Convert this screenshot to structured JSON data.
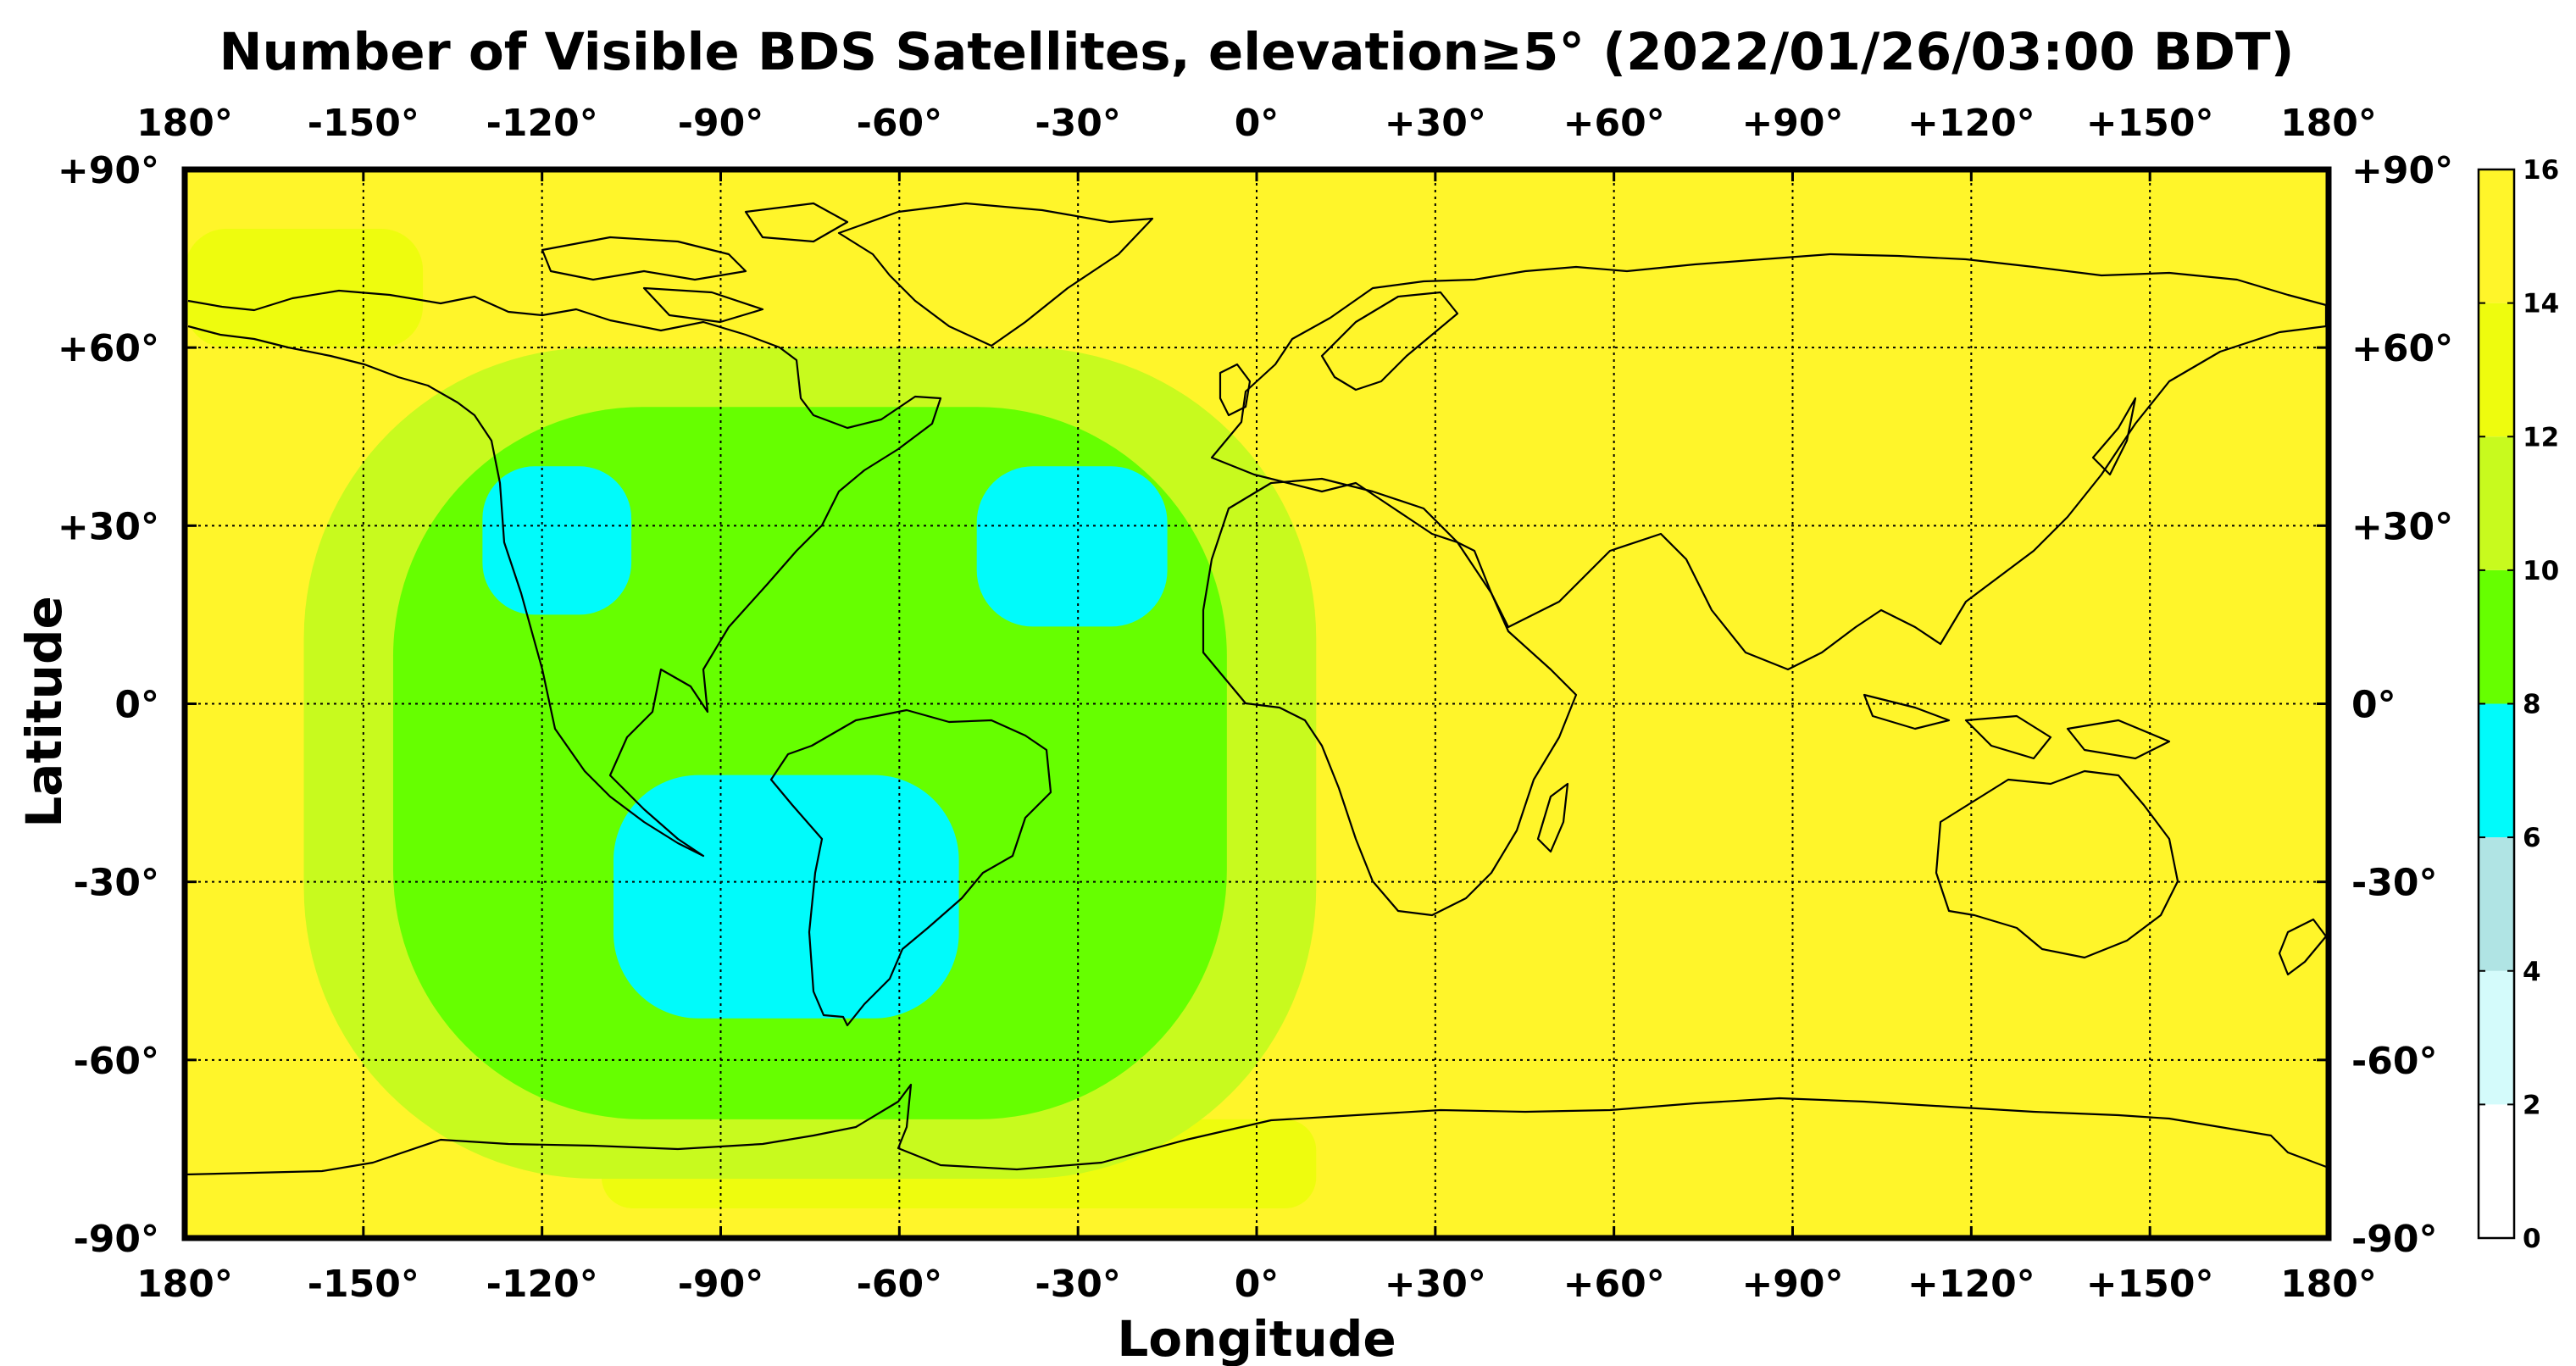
{
  "title": "Number of Visible BDS Satellites, elevation≥5° (2022/01/26/03:00 BDT)",
  "xlabel": "Longitude",
  "ylabel": "Latitude",
  "lon_ticks": [
    "180°",
    "-150°",
    "-120°",
    "-90°",
    "-60°",
    "-30°",
    "0°",
    "+30°",
    "+60°",
    "+90°",
    "+120°",
    "+150°",
    "180°"
  ],
  "lat_ticks": [
    "+90°",
    "+60°",
    "+30°",
    "0°",
    "-30°",
    "-60°",
    "-90°"
  ],
  "colorbar": {
    "ticks": [
      "16",
      "14",
      "12",
      "10",
      "8",
      "6",
      "4",
      "2",
      "0"
    ],
    "bands": [
      {
        "from": 0,
        "to": 2,
        "color": "#ffffff"
      },
      {
        "from": 2,
        "to": 4,
        "color": "#d4fbfb"
      },
      {
        "from": 4,
        "to": 6,
        "color": "#b0e4e4"
      },
      {
        "from": 6,
        "to": 8,
        "color": "#00fbfb"
      },
      {
        "from": 8,
        "to": 10,
        "color": "#66ff00"
      },
      {
        "from": 10,
        "to": 12,
        "color": "#c8fa1e"
      },
      {
        "from": 12,
        "to": 14,
        "color": "#eefc0e"
      },
      {
        "from": 14,
        "to": 16,
        "color": "#fff52a"
      }
    ]
  },
  "chart_data": {
    "type": "heatmap",
    "lon_range": [
      -180,
      180
    ],
    "lat_range": [
      -90,
      90
    ],
    "value_range": [
      0,
      16
    ],
    "background_value": 15,
    "regions": [
      {
        "value": 13,
        "lon_min": -180,
        "lon_max": -140,
        "lat_min": 60,
        "lat_max": 80
      },
      {
        "value": 13,
        "lon_min": -110,
        "lon_max": 10,
        "lat_min": -85,
        "lat_max": -70
      },
      {
        "value": 11,
        "lon_min": -160,
        "lon_max": 10,
        "lat_min": -80,
        "lat_max": 60
      },
      {
        "value": 9,
        "lon_min": -145,
        "lon_max": -5,
        "lat_min": -70,
        "lat_max": 50
      },
      {
        "value": 7,
        "lon_min": -130,
        "lon_max": -105,
        "lat_min": 15,
        "lat_max": 40
      },
      {
        "value": 7,
        "lon_min": -47,
        "lon_max": -15,
        "lat_min": 13,
        "lat_max": 40
      },
      {
        "value": 7,
        "lon_min": -108,
        "lon_max": -50,
        "lat_min": -53,
        "lat_max": -12
      }
    ]
  }
}
